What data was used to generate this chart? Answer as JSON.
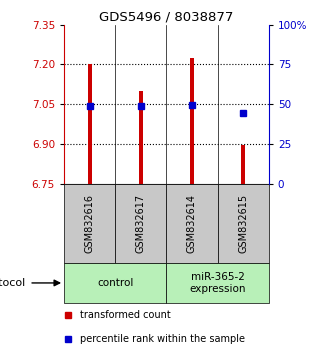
{
  "title": "GDS5496 / 8038877",
  "samples": [
    "GSM832616",
    "GSM832617",
    "GSM832614",
    "GSM832615"
  ],
  "bar_tops": [
    7.2,
    7.1,
    7.225,
    6.895
  ],
  "bar_bottom": 6.75,
  "blue_dot_values": [
    7.045,
    7.045,
    7.048,
    7.015
  ],
  "ylim_left": [
    6.75,
    7.35
  ],
  "ylim_right": [
    0,
    100
  ],
  "left_ticks": [
    6.75,
    6.9,
    7.05,
    7.2,
    7.35
  ],
  "right_ticks": [
    0,
    25,
    50,
    75,
    100
  ],
  "right_tick_labels": [
    "0",
    "25",
    "50",
    "75",
    "100%"
  ],
  "group_labels": [
    "control",
    "miR-365-2\nexpression"
  ],
  "group_color": "#b8f0b8",
  "bar_color": "#cc0000",
  "blue_color": "#0000cc",
  "legend_tc_label": "transformed count",
  "legend_pr_label": "percentile rank within the sample",
  "protocol_label": "protocol",
  "sample_box_color": "#c8c8c8",
  "dotted_lines": [
    6.9,
    7.05,
    7.2
  ],
  "bar_width": 0.08
}
